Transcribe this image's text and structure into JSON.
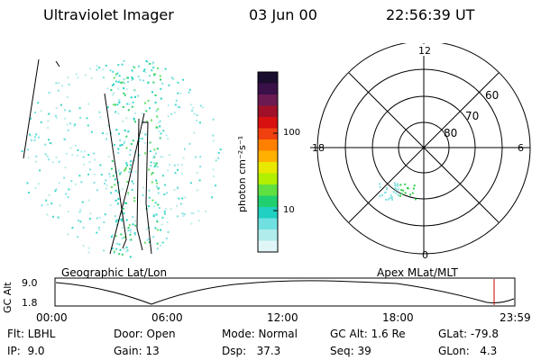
{
  "header": {
    "title": "Ultraviolet Imager",
    "date": "03 Jun 00",
    "time": "22:56:39 UT"
  },
  "geo_panel": {
    "label": "Geographic Lat/Lon"
  },
  "polar_panel": {
    "label": "Apex MLat/MLT",
    "mlt_labels": {
      "top": "12",
      "left": "18",
      "right": "6",
      "bottom": "0"
    },
    "lat_labels": [
      "60",
      "70",
      "80"
    ]
  },
  "colorbar": {
    "unit_label": "photon cm⁻²s⁻¹",
    "ticks": [
      "100",
      "10"
    ],
    "colors": [
      "#1a0d2e",
      "#3a1048",
      "#6b1a52",
      "#a01028",
      "#d81010",
      "#f04010",
      "#ff8000",
      "#ffb000",
      "#e8e800",
      "#b0f000",
      "#60e040",
      "#20d070",
      "#20d0c0",
      "#70e0e0",
      "#b0ecec",
      "#e0f6f6"
    ]
  },
  "altitude_plot": {
    "ylabel": "GC Alt",
    "y_top": "9.0",
    "y_bottom": "1.8",
    "x_ticks": [
      "00:00",
      "06:00",
      "12:00",
      "18:00",
      "23:59"
    ],
    "current_time_marker_color": "#cc0000"
  },
  "info": {
    "flt": "Flt: LBHL",
    "ip": "IP:  9.0",
    "door": "Door: Open",
    "gain": "Gain: 13",
    "mode": "Mode: Normal",
    "dsp": "Dsp:   37.3",
    "gc_alt": "GC Alt: 1.6 Re",
    "seq": "Seq: 39",
    "glat": "GLat: -79.8",
    "glon": "GLon:   4.3"
  }
}
